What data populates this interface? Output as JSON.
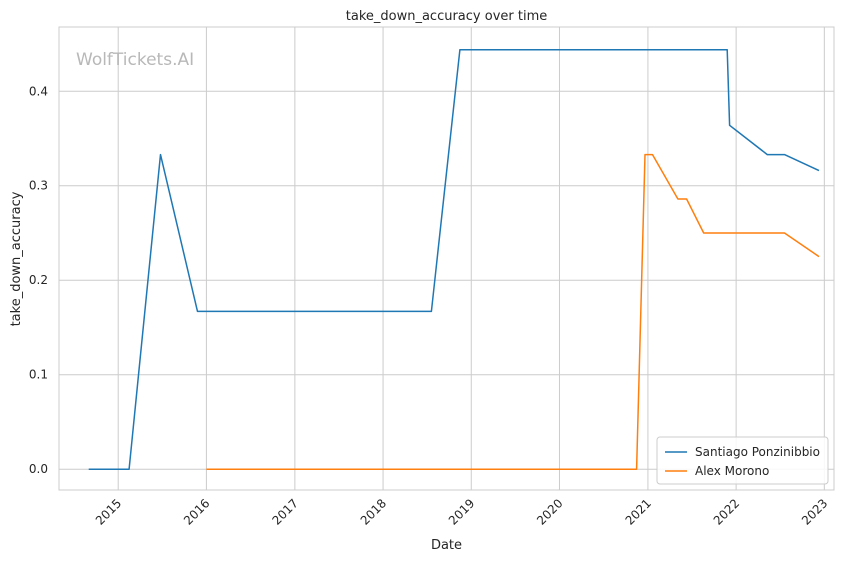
{
  "chart_data": {
    "type": "line",
    "title": "take_down_accuracy over time",
    "xlabel": "Date",
    "ylabel": "take_down_accuracy",
    "watermark": "WolfTickets.AI",
    "xlim": [
      "2014-05-01",
      "2023-02-10"
    ],
    "ylim": [
      -0.022,
      0.468
    ],
    "x_ticks": [
      "2015",
      "2016",
      "2017",
      "2018",
      "2019",
      "2020",
      "2021",
      "2022",
      "2023"
    ],
    "y_ticks": [
      "0.0",
      "0.1",
      "0.2",
      "0.3",
      "0.4"
    ],
    "grid": true,
    "legend_position": "bottom-right",
    "series": [
      {
        "name": "Santiago Ponzinibbio",
        "color": "#1f77b4",
        "points": [
          [
            "2014-09-01",
            0.0
          ],
          [
            "2015-02-15",
            0.0
          ],
          [
            "2015-06-25",
            0.333
          ],
          [
            "2015-11-25",
            0.167
          ],
          [
            "2018-07-20",
            0.167
          ],
          [
            "2018-11-15",
            0.444
          ],
          [
            "2021-11-25",
            0.444
          ],
          [
            "2021-12-05",
            0.364
          ],
          [
            "2022-05-10",
            0.333
          ],
          [
            "2022-07-20",
            0.333
          ],
          [
            "2022-12-10",
            0.316
          ]
        ]
      },
      {
        "name": "Alex Morono",
        "color": "#ff7f0e",
        "points": [
          [
            "2016-01-01",
            0.0
          ],
          [
            "2020-11-15",
            0.0
          ],
          [
            "2020-12-20",
            0.333
          ],
          [
            "2021-01-20",
            0.333
          ],
          [
            "2021-05-05",
            0.286
          ],
          [
            "2021-06-10",
            0.286
          ],
          [
            "2021-08-20",
            0.25
          ],
          [
            "2022-07-20",
            0.25
          ],
          [
            "2022-12-10",
            0.225
          ]
        ]
      }
    ]
  }
}
